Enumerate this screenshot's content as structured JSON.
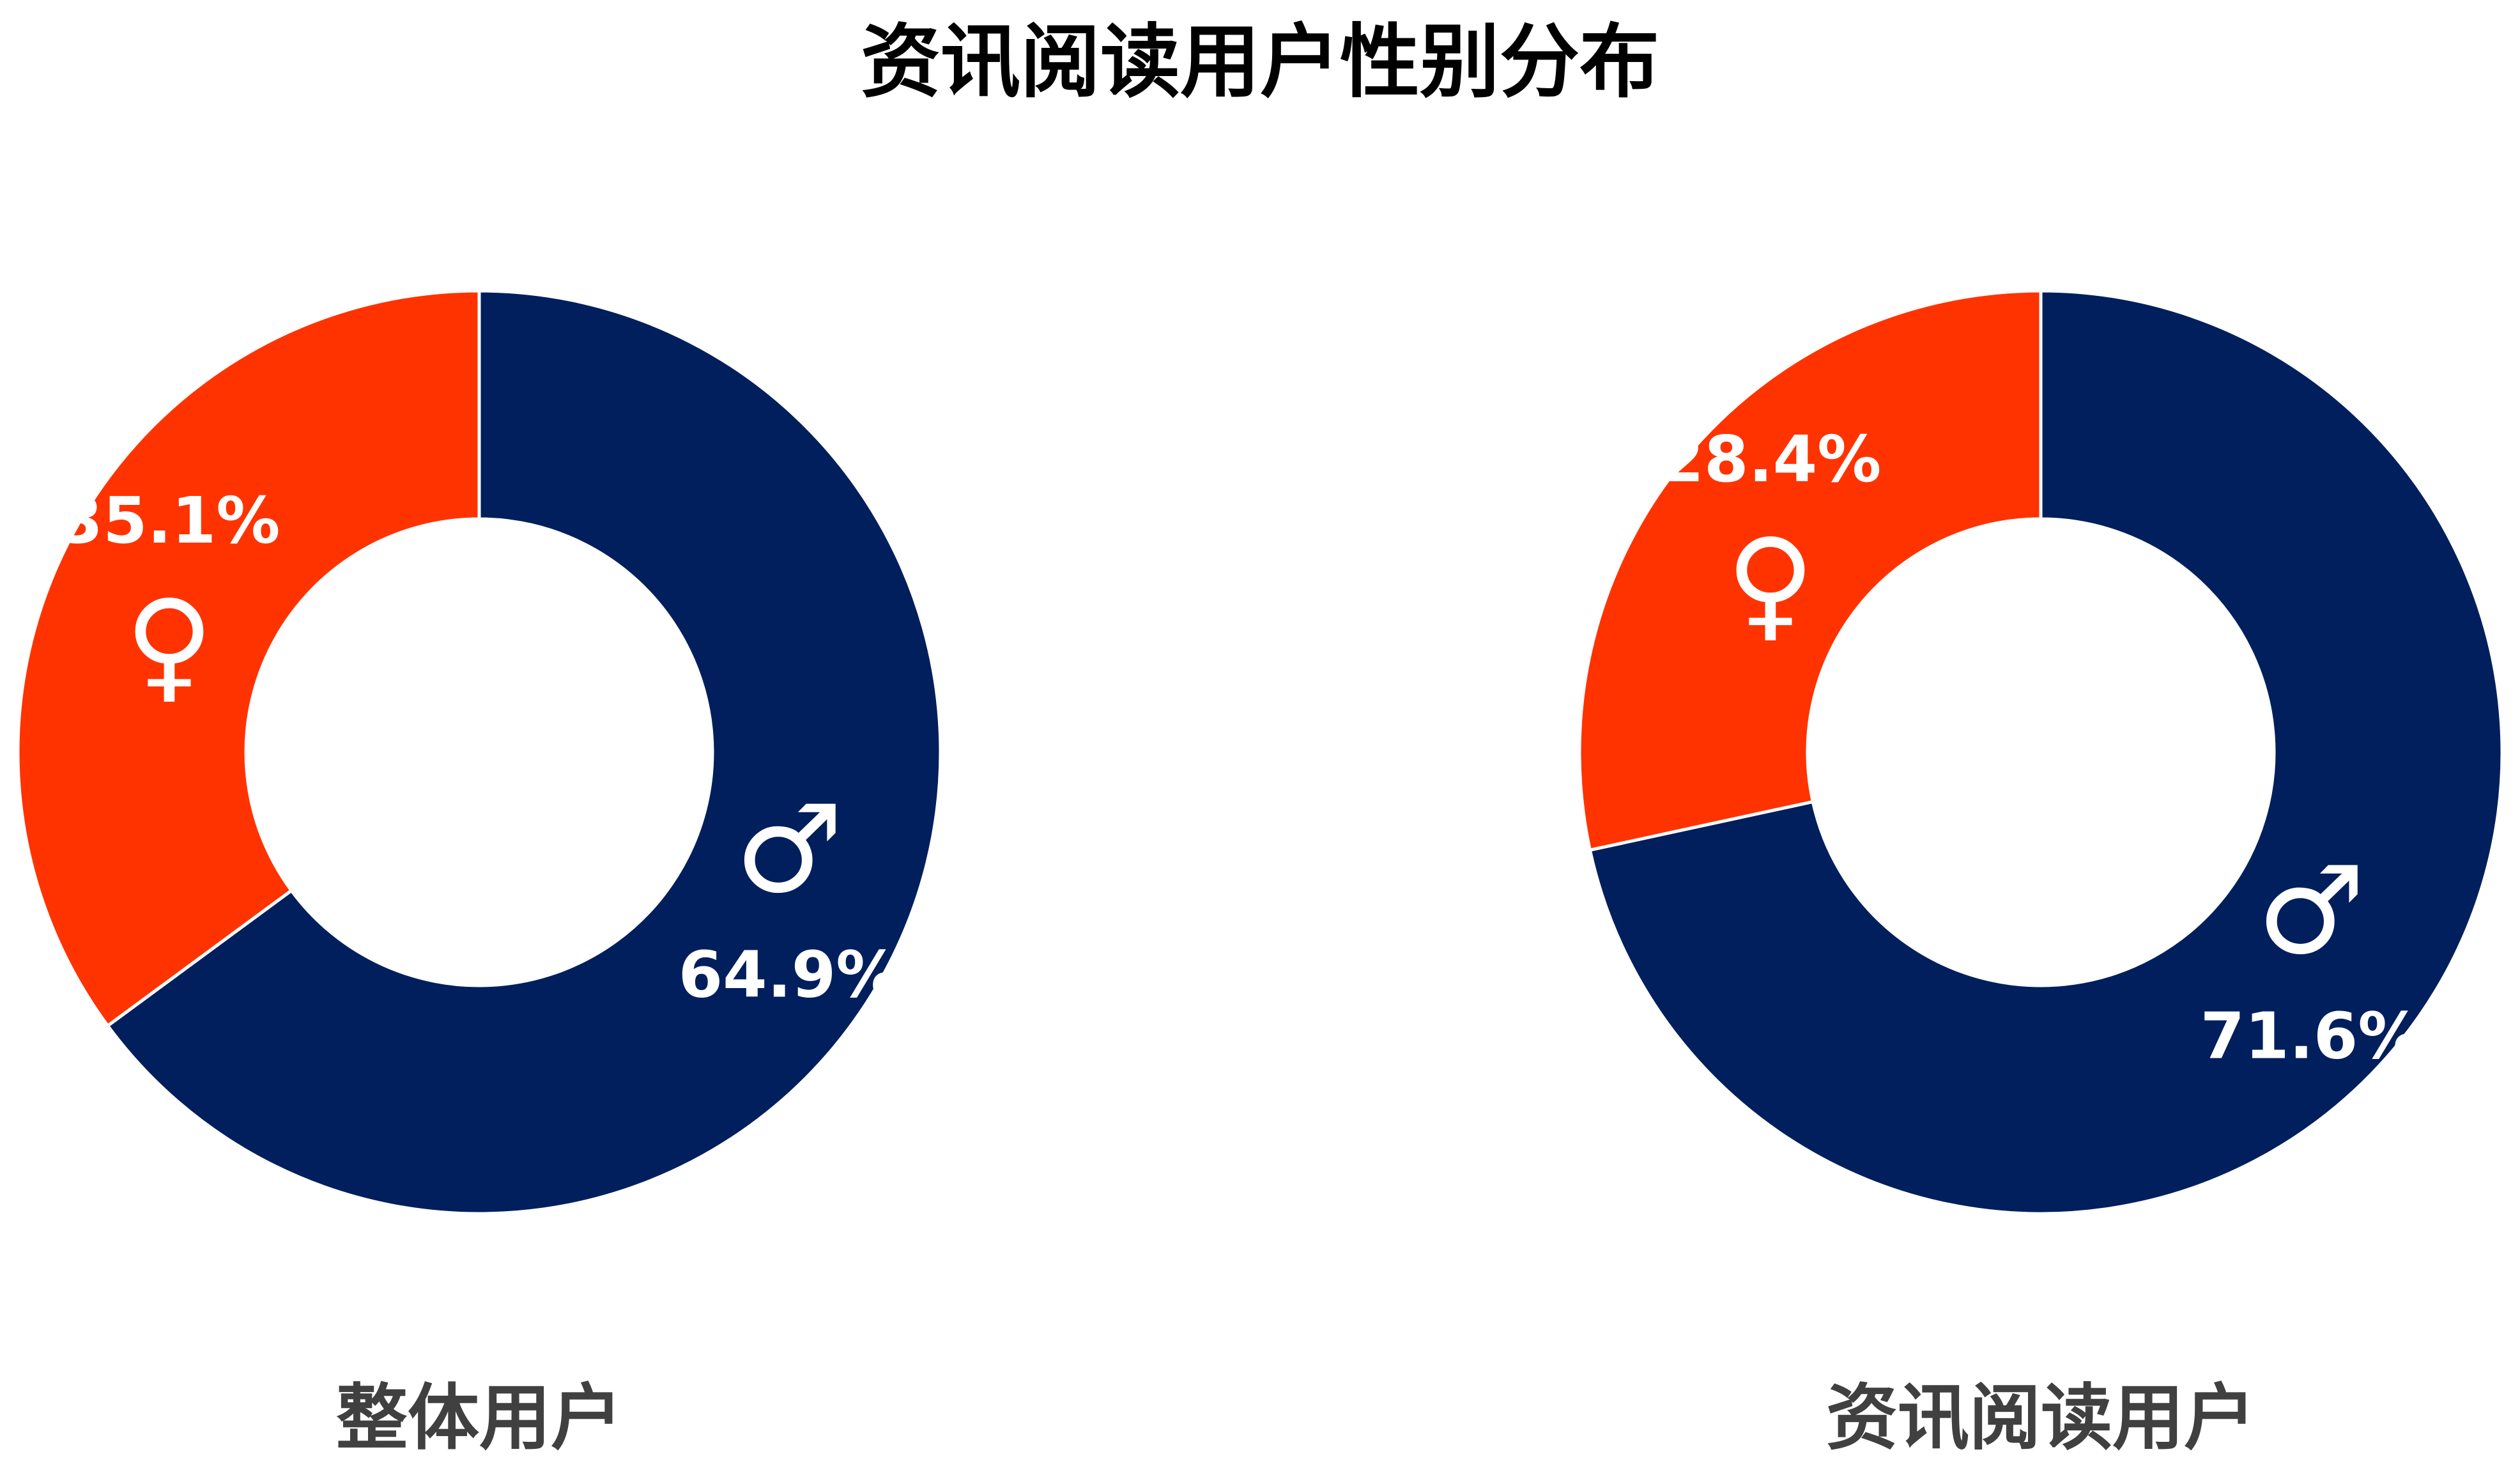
{
  "title": "资讯阅读用户性别分布",
  "chart_data": [
    {
      "type": "pie",
      "title": "整体用户",
      "categories": [
        "♂",
        "♀"
      ],
      "values": [
        64.9,
        35.1
      ],
      "value_labels": [
        "64.9%",
        "35.1%"
      ],
      "colors": [
        "#001f5c",
        "#ff3300"
      ]
    },
    {
      "type": "pie",
      "title": "资讯阅读用户",
      "categories": [
        "♂",
        "♀"
      ],
      "values": [
        71.6,
        28.4
      ],
      "value_labels": [
        "71.6%",
        "28.4%"
      ],
      "colors": [
        "#001f5c",
        "#ff3300"
      ]
    }
  ]
}
